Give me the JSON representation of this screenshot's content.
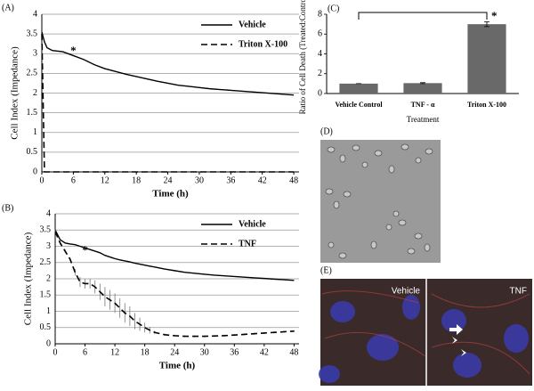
{
  "chart_data": [
    {
      "type": "line",
      "panel": "(A)",
      "y_label": "Cell Index (Impedance)",
      "x_label": "Time (h)",
      "annotation": "*",
      "legend": "upper right",
      "xlim": [
        0,
        49
      ],
      "xticks": [
        0,
        6,
        12,
        18,
        24,
        30,
        36,
        42,
        48
      ],
      "ylim": [
        0,
        4
      ],
      "yticks": [
        0,
        0.5,
        1,
        1.5,
        2,
        2.5,
        3,
        3.5,
        4
      ],
      "x": [
        0,
        0.5,
        1,
        2,
        4,
        6,
        8,
        10,
        12,
        14,
        16,
        18,
        20,
        22,
        24,
        26,
        28,
        30,
        32,
        34,
        36,
        38,
        40,
        42,
        44,
        46,
        48
      ],
      "series": [
        {
          "name": "Vehicle",
          "color": "#000000",
          "dash": false,
          "values": [
            3.55,
            3.3,
            3.15,
            3.08,
            3.05,
            2.95,
            2.85,
            2.72,
            2.62,
            2.55,
            2.48,
            2.42,
            2.36,
            2.3,
            2.25,
            2.2,
            2.17,
            2.14,
            2.11,
            2.09,
            2.07,
            2.05,
            2.03,
            2.01,
            1.99,
            1.97,
            1.95
          ]
        },
        {
          "name": "Triton X-100",
          "color": "#000000",
          "dash": true,
          "values": [
            3.5,
            0,
            0,
            0,
            0,
            0,
            0,
            0,
            0,
            0,
            0,
            0,
            0,
            0,
            0,
            0,
            0,
            0,
            0,
            0,
            0,
            0,
            0,
            0,
            0,
            0,
            0
          ]
        }
      ]
    },
    {
      "type": "line",
      "panel": "(B)",
      "y_label": "Cell Index (Impedance)",
      "x_label": "Time (h)",
      "annotation": "*",
      "legend": "upper right",
      "xlim": [
        0,
        49
      ],
      "xticks": [
        0,
        6,
        12,
        18,
        24,
        30,
        36,
        42,
        48
      ],
      "ylim": [
        0,
        4
      ],
      "yticks": [
        0,
        0.5,
        1,
        1.5,
        2,
        2.5,
        3,
        3.5,
        4
      ],
      "x": [
        0,
        1,
        2,
        3,
        4,
        5,
        6,
        7,
        8,
        9,
        10,
        11,
        12,
        13,
        14,
        15,
        16,
        17,
        18,
        19,
        20,
        22,
        24,
        26,
        28,
        30,
        32,
        34,
        36,
        38,
        40,
        42,
        44,
        46,
        48
      ],
      "series": [
        {
          "name": "Vehicle",
          "color": "#000000",
          "dash": false,
          "values": [
            3.5,
            3.2,
            3.1,
            3.07,
            3.05,
            3.0,
            2.95,
            2.9,
            2.85,
            2.8,
            2.72,
            2.67,
            2.62,
            2.58,
            2.55,
            2.52,
            2.48,
            2.45,
            2.42,
            2.39,
            2.36,
            2.3,
            2.25,
            2.2,
            2.17,
            2.14,
            2.11,
            2.09,
            2.07,
            2.05,
            2.03,
            2.01,
            1.99,
            1.97,
            1.95
          ]
        },
        {
          "name": "TNF",
          "color": "#000000",
          "dash": true,
          "values": [
            3.45,
            3.1,
            2.85,
            2.6,
            2.2,
            1.9,
            1.85,
            1.85,
            1.75,
            1.6,
            1.45,
            1.35,
            1.25,
            1.1,
            0.95,
            0.85,
            0.7,
            0.6,
            0.5,
            0.42,
            0.35,
            0.28,
            0.25,
            0.23,
            0.23,
            0.23,
            0.24,
            0.25,
            0.27,
            0.29,
            0.31,
            0.33,
            0.35,
            0.37,
            0.39
          ],
          "errors": [
            0.05,
            0.05,
            0.05,
            0.05,
            0.1,
            0.15,
            0.15,
            0.15,
            0.2,
            0.25,
            0.3,
            0.3,
            0.3,
            0.3,
            0.3,
            0.3,
            0.25,
            0.2,
            0.15,
            0.1,
            0.05,
            0.03,
            0.03,
            0.03,
            0.03,
            0.03,
            0.03,
            0.03,
            0.03,
            0.03,
            0.03,
            0.03,
            0.03,
            0.03,
            0.03
          ]
        }
      ]
    },
    {
      "type": "bar",
      "panel": "(C)",
      "y_label": "Ratio of Cell Death (Treated:Control)",
      "x_label": "Treatment",
      "annotation": "*",
      "categories": [
        "Vehicle Control",
        "TNF - α",
        "Triton X-100"
      ],
      "values": [
        1,
        1.05,
        7
      ],
      "errors": [
        0,
        0.05,
        0.25
      ],
      "color": "#696969",
      "ylim": [
        0,
        8
      ],
      "yticks": [
        0,
        2,
        4,
        6,
        8
      ]
    }
  ],
  "panels": {
    "d": {
      "label": "(D)"
    },
    "e": {
      "label": "(E)",
      "left": "Vehicle",
      "right": "TNF"
    }
  }
}
